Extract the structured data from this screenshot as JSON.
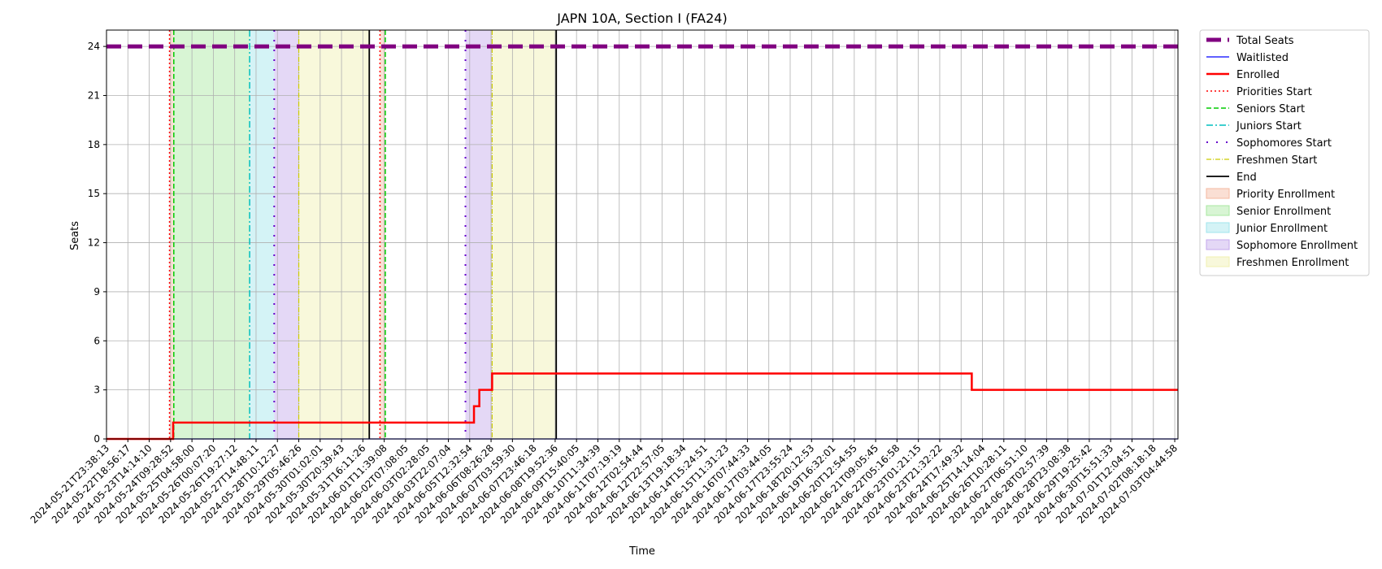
{
  "chart_data": {
    "type": "line",
    "title": "JAPN 10A, Section I (FA24)",
    "xlabel": "Time",
    "ylabel": "Seats",
    "ylim": [
      0,
      25
    ],
    "yticks": [
      0,
      3,
      6,
      9,
      12,
      15,
      18,
      21,
      24
    ],
    "grid": true,
    "legend_position": "outside-right",
    "x_tick_labels": [
      "2024-05-21T23:38:13",
      "2024-05-22T18:56:17",
      "2024-05-23T14:14:10",
      "2024-05-24T09:28:52",
      "2024-05-25T04:58:00",
      "2024-05-26T00:07:20",
      "2024-05-26T19:27:12",
      "2024-05-27T14:48:11",
      "2024-05-28T10:12:27",
      "2024-05-29T05:46:26",
      "2024-05-30T01:02:01",
      "2024-05-30T20:39:43",
      "2024-05-31T16:11:26",
      "2024-06-01T11:39:08",
      "2024-06-02T07:08:05",
      "2024-06-03T02:28:05",
      "2024-06-03T22:07:04",
      "2024-06-05T12:32:54",
      "2024-06-06T08:26:28",
      "2024-06-07T03:59:30",
      "2024-06-07T23:46:18",
      "2024-06-08T19:52:36",
      "2024-06-09T15:40:05",
      "2024-06-10T11:34:39",
      "2024-06-11T07:19:19",
      "2024-06-12T02:54:44",
      "2024-06-12T22:57:05",
      "2024-06-13T19:18:34",
      "2024-06-14T15:24:51",
      "2024-06-15T11:31:23",
      "2024-06-16T07:44:33",
      "2024-06-17T03:44:05",
      "2024-06-17T23:55:24",
      "2024-06-18T20:12:53",
      "2024-06-19T16:32:01",
      "2024-06-20T12:54:55",
      "2024-06-21T09:05:45",
      "2024-06-22T05:16:58",
      "2024-06-23T01:21:15",
      "2024-06-23T21:32:22",
      "2024-06-24T17:49:32",
      "2024-06-25T14:14:04",
      "2024-06-26T10:28:11",
      "2024-06-27T06:51:10",
      "2024-06-28T02:57:39",
      "2024-06-28T23:08:38",
      "2024-06-29T19:25:42",
      "2024-06-30T15:51:33",
      "2024-07-01T12:04:51",
      "2024-07-02T08:18:18",
      "2024-07-03T04:44:58"
    ],
    "x_range": [
      0,
      50.15
    ],
    "series": [
      {
        "name": "Total Seats",
        "color": "#800080",
        "style": "dashed-thick",
        "points": [
          [
            0,
            24
          ],
          [
            50.15,
            24
          ]
        ]
      },
      {
        "name": "Waitlisted",
        "color": "#0000ff",
        "style": "solid-thin",
        "points": [
          [
            0,
            0
          ],
          [
            50.15,
            0
          ]
        ]
      },
      {
        "name": "Enrolled",
        "color": "#ff0000",
        "style": "step",
        "points": [
          [
            0,
            0
          ],
          [
            3.12,
            0
          ],
          [
            3.12,
            1
          ],
          [
            17.2,
            1
          ],
          [
            17.2,
            2
          ],
          [
            17.45,
            2
          ],
          [
            17.45,
            3
          ],
          [
            18.05,
            3
          ],
          [
            18.05,
            4
          ],
          [
            40.5,
            4
          ],
          [
            40.5,
            3
          ],
          [
            50.15,
            3
          ]
        ]
      }
    ],
    "vertical_lines": [
      {
        "name": "Priorities Start",
        "color": "#ff0000",
        "style": "dotted",
        "x": [
          2.95,
          12.8
        ]
      },
      {
        "name": "Seniors Start",
        "color": "#00cc00",
        "style": "dashed",
        "x": [
          3.15,
          13.05
        ]
      },
      {
        "name": "Juniors Start",
        "color": "#00bfbf",
        "style": "dashdot",
        "x": [
          6.7
        ]
      },
      {
        "name": "Sophomores Start",
        "color": "#6600cc",
        "style": "dotsparse",
        "x": [
          7.85,
          16.8
        ]
      },
      {
        "name": "Freshmen Start",
        "color": "#cccc00",
        "style": "dashdot-thin",
        "x": [
          9.0,
          18.05
        ]
      },
      {
        "name": "End",
        "color": "#000000",
        "style": "solid",
        "x": [
          12.3,
          21.05
        ]
      }
    ],
    "spans": [
      {
        "name": "Priority Enrollment",
        "color": "#f4b8a0",
        "ranges": [
          [
            2.95,
            3.15
          ],
          [
            12.8,
            13.05
          ]
        ]
      },
      {
        "name": "Senior Enrollment",
        "color": "#a8e8a0",
        "ranges": [
          [
            3.15,
            6.7
          ]
        ]
      },
      {
        "name": "Junior Enrollment",
        "color": "#a0e4ec",
        "ranges": [
          [
            6.7,
            7.85
          ]
        ]
      },
      {
        "name": "Sophomore Enrollment",
        "color": "#c4a8ec",
        "ranges": [
          [
            7.85,
            9.0
          ],
          [
            16.8,
            18.05
          ]
        ]
      },
      {
        "name": "Freshmen Enrollment",
        "color": "#f0f0b0",
        "ranges": [
          [
            9.0,
            12.3
          ],
          [
            18.05,
            21.05
          ]
        ]
      }
    ],
    "legend": [
      {
        "label": "Total Seats",
        "kind": "line",
        "color": "#800080",
        "style": "dashed-thick"
      },
      {
        "label": "Waitlisted",
        "kind": "line",
        "color": "#0000ff",
        "style": "solid-thin"
      },
      {
        "label": "Enrolled",
        "kind": "line",
        "color": "#ff0000",
        "style": "solid-thick"
      },
      {
        "label": "Priorities Start",
        "kind": "line",
        "color": "#ff0000",
        "style": "dotted"
      },
      {
        "label": "Seniors Start",
        "kind": "line",
        "color": "#00cc00",
        "style": "dashed"
      },
      {
        "label": "Juniors Start",
        "kind": "line",
        "color": "#00bfbf",
        "style": "dashdot"
      },
      {
        "label": "Sophomores Start",
        "kind": "line",
        "color": "#6600cc",
        "style": "dotsparse"
      },
      {
        "label": "Freshmen Start",
        "kind": "line",
        "color": "#cccc00",
        "style": "dashdot-thin"
      },
      {
        "label": "End",
        "kind": "line",
        "color": "#000000",
        "style": "solid"
      },
      {
        "label": "Priority Enrollment",
        "kind": "patch",
        "color": "#f4b8a0"
      },
      {
        "label": "Senior Enrollment",
        "kind": "patch",
        "color": "#a8e8a0"
      },
      {
        "label": "Junior Enrollment",
        "kind": "patch",
        "color": "#a0e4ec"
      },
      {
        "label": "Sophomore Enrollment",
        "kind": "patch",
        "color": "#c4a8ec"
      },
      {
        "label": "Freshmen Enrollment",
        "kind": "patch",
        "color": "#f0f0b0"
      }
    ]
  }
}
